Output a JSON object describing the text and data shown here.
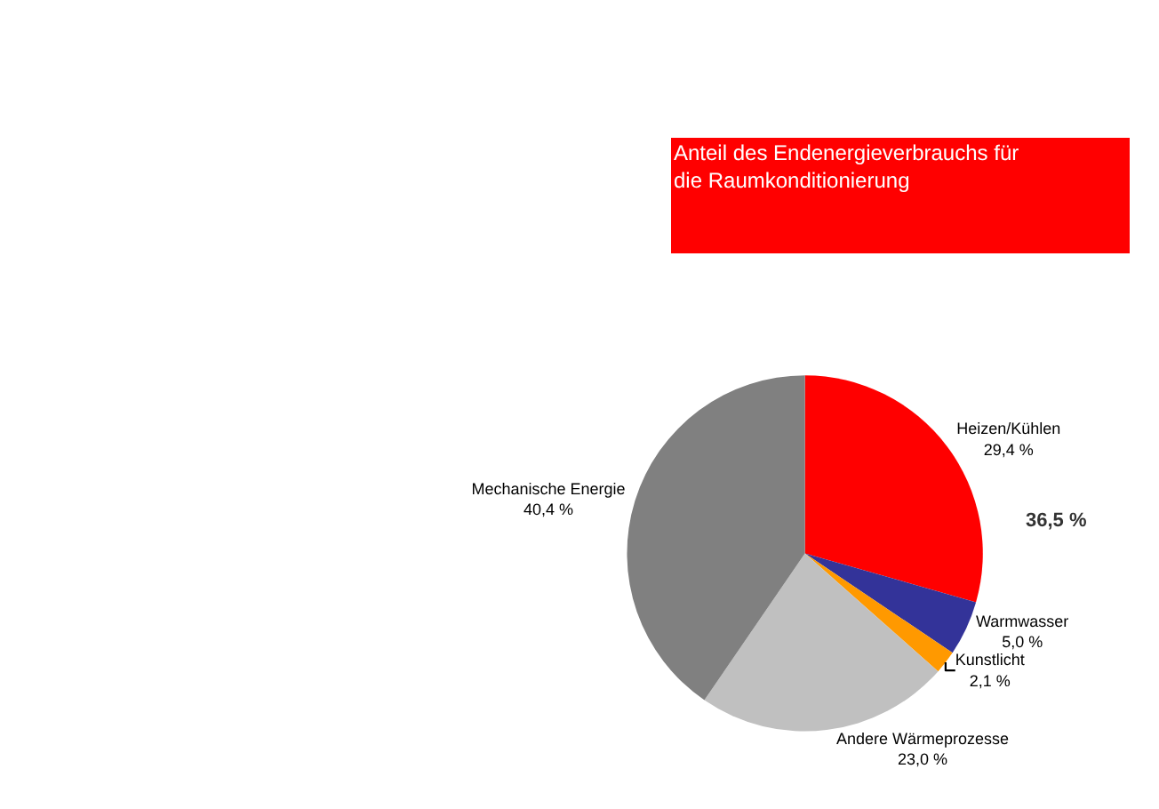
{
  "chart_data": {
    "type": "pie",
    "title": "Anteil des Endenergieverbrauchs für die Raumkonditionierung",
    "categories": [
      "Heizen/Kühlen",
      "Warmwasser",
      "Kunstlicht",
      "Andere Wärmeprozesse",
      "Mechanische Energie"
    ],
    "values": [
      29.4,
      5.0,
      2.1,
      23.0,
      40.4
    ],
    "value_labels": [
      "29,4 %",
      "5,0 %",
      "2,1 %",
      "23,0 %",
      "40,4 %"
    ],
    "colors": [
      "#ff0000",
      "#333399",
      "#ff9900",
      "#c0c0c0",
      "#808080"
    ],
    "annotations": [
      "36,5 %"
    ]
  }
}
